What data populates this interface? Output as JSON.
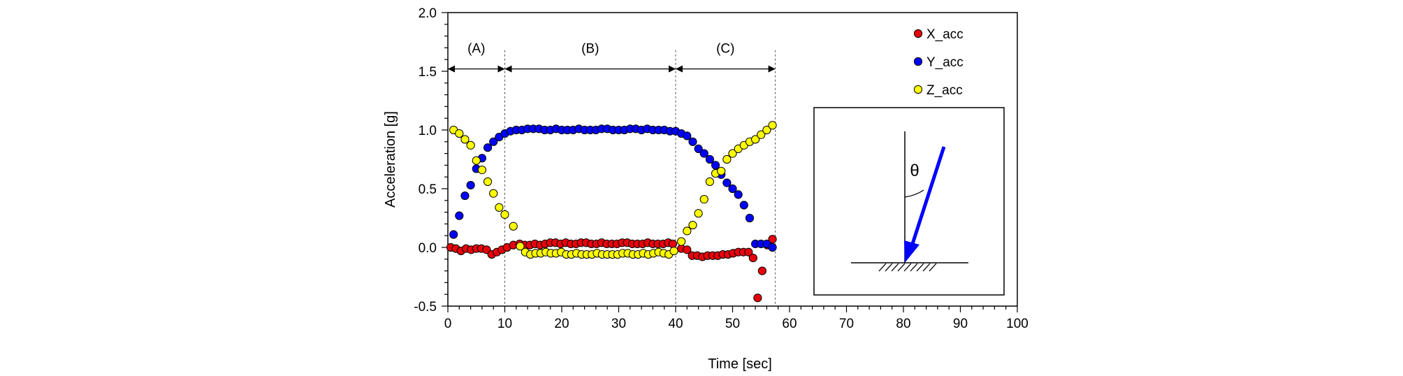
{
  "chart_data": {
    "type": "scatter",
    "xlabel": "Time [sec]",
    "ylabel": "Acceleration [g]",
    "xlim": [
      0,
      100
    ],
    "ylim": [
      -0.5,
      2.0
    ],
    "x_ticks": [
      "0",
      "10",
      "20",
      "30",
      "40",
      "50",
      "60",
      "70",
      "80",
      "90",
      "100"
    ],
    "y_ticks": [
      "-0.5",
      "0.0",
      "0.5",
      "1.0",
      "1.5",
      "2.0"
    ],
    "grid": false,
    "legend_position": "top-right",
    "colors": {
      "X_acc": "#e8000b",
      "Y_acc": "#0000ff",
      "Z_acc": "#ffff00"
    },
    "series": [
      {
        "name": "X_acc",
        "x": [
          0.5,
          1.4,
          2.3,
          3.2,
          4.1,
          5,
          5.9,
          6.8,
          7.7,
          8.6,
          9.5,
          10.4,
          11.5,
          12.6,
          13.5,
          14.4,
          15.3,
          16.2,
          17.1,
          18,
          18.9,
          19.8,
          20.7,
          21.6,
          22.5,
          23.4,
          24.3,
          25.2,
          26.1,
          27,
          27.9,
          28.8,
          29.7,
          30.6,
          31.5,
          32.4,
          33.3,
          34.2,
          35.1,
          36,
          36.9,
          37.8,
          38.7,
          39.5,
          41,
          42,
          42.9,
          43.8,
          44.7,
          45.6,
          46.5,
          47.4,
          48.3,
          49.2,
          50.1,
          51,
          51.9,
          52.8,
          53.6,
          54.4,
          55.2,
          56.1,
          57
        ],
        "y": [
          0.0,
          -0.01,
          -0.03,
          -0.01,
          -0.02,
          -0.01,
          -0.01,
          -0.02,
          -0.06,
          -0.04,
          -0.02,
          0.0,
          0.02,
          0.03,
          0.02,
          0.02,
          0.03,
          0.02,
          0.03,
          0.04,
          0.04,
          0.03,
          0.04,
          0.03,
          0.03,
          0.04,
          0.04,
          0.03,
          0.03,
          0.04,
          0.03,
          0.03,
          0.03,
          0.04,
          0.04,
          0.03,
          0.03,
          0.03,
          0.04,
          0.03,
          0.03,
          0.03,
          0.04,
          0.03,
          -0.01,
          -0.02,
          -0.07,
          -0.07,
          -0.08,
          -0.07,
          -0.07,
          -0.07,
          -0.06,
          -0.06,
          -0.05,
          -0.04,
          -0.04,
          -0.04,
          -0.09,
          -0.43,
          -0.2,
          0.02,
          0.07
        ]
      },
      {
        "name": "Y_acc",
        "x": [
          1,
          2,
          3,
          4,
          5,
          6,
          7,
          8,
          9,
          10,
          11,
          12,
          13,
          14,
          15,
          16,
          17,
          18,
          19,
          20,
          21,
          22,
          23,
          24,
          25,
          26,
          27,
          28,
          29,
          30,
          31,
          32,
          33,
          34,
          35,
          36,
          37,
          38,
          39,
          40,
          41,
          42,
          43,
          44,
          45,
          46,
          47,
          48,
          49,
          50,
          51,
          52,
          53,
          54,
          55,
          56,
          57
        ],
        "y": [
          0.11,
          0.27,
          0.44,
          0.53,
          0.67,
          0.76,
          0.85,
          0.9,
          0.94,
          0.97,
          0.99,
          1.0,
          1.0,
          1.01,
          1.01,
          1.01,
          1.0,
          1.0,
          1.01,
          1.0,
          1.0,
          1.0,
          1.01,
          1.0,
          1.0,
          1.0,
          1.01,
          1.01,
          1.0,
          1.0,
          1.0,
          1.01,
          1.01,
          1.0,
          1.01,
          1.0,
          1.0,
          1.0,
          0.99,
          0.99,
          0.97,
          0.95,
          0.9,
          0.84,
          0.8,
          0.75,
          0.7,
          0.62,
          0.55,
          0.5,
          0.45,
          0.36,
          0.25,
          0.03,
          0.03,
          0.03,
          0.0
        ]
      },
      {
        "name": "Z_acc",
        "x": [
          1,
          2,
          3,
          4,
          5,
          6,
          7,
          8,
          9,
          10,
          11.5,
          12.7,
          13.6,
          14.5,
          15.4,
          16.3,
          17.2,
          18.1,
          19,
          19.9,
          20.8,
          21.7,
          22.6,
          23.5,
          24.4,
          25.3,
          26.2,
          27.1,
          28,
          28.9,
          29.8,
          30.7,
          31.6,
          32.5,
          33.4,
          34.3,
          35.2,
          36.1,
          37,
          37.9,
          38.8,
          39.7,
          41,
          42,
          43,
          44,
          45,
          46,
          47,
          48,
          49,
          50,
          51,
          52,
          53,
          54,
          55,
          56,
          57
        ],
        "y": [
          1.0,
          0.97,
          0.92,
          0.87,
          0.74,
          0.66,
          0.56,
          0.46,
          0.34,
          0.28,
          0.18,
          0.01,
          -0.04,
          -0.06,
          -0.05,
          -0.05,
          -0.04,
          -0.05,
          -0.05,
          -0.04,
          -0.06,
          -0.06,
          -0.05,
          -0.06,
          -0.06,
          -0.06,
          -0.05,
          -0.06,
          -0.06,
          -0.06,
          -0.06,
          -0.05,
          -0.05,
          -0.06,
          -0.06,
          -0.05,
          -0.06,
          -0.05,
          -0.04,
          -0.05,
          -0.06,
          -0.03,
          0.05,
          0.14,
          0.19,
          0.29,
          0.41,
          0.56,
          0.63,
          0.65,
          0.75,
          0.8,
          0.84,
          0.87,
          0.9,
          0.92,
          0.96,
          1.0,
          1.04
        ]
      }
    ],
    "regions": [
      {
        "label": "(A)",
        "start": 0,
        "end": 10
      },
      {
        "label": "(B)",
        "start": 10,
        "end": 40
      },
      {
        "label": "(C)",
        "start": 40,
        "end": 57.5
      }
    ],
    "inset": {
      "label": "θ",
      "arrow_color": "#0000ff"
    }
  }
}
